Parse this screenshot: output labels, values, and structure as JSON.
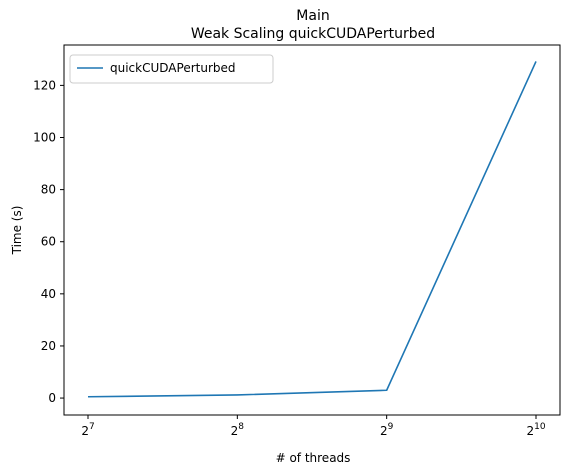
{
  "chart_data": {
    "type": "line",
    "title": "Main",
    "subtitle": "Weak Scaling quickCUDAPerturbed",
    "xlabel": "# of threads",
    "ylabel": "Time (s)",
    "x_scale": "log2",
    "x": [
      128,
      256,
      512,
      1024
    ],
    "x_tick_values": [
      128,
      256,
      512,
      1024
    ],
    "x_tick_labels": [
      {
        "base": "2",
        "exp": "7"
      },
      {
        "base": "2",
        "exp": "8"
      },
      {
        "base": "2",
        "exp": "9"
      },
      {
        "base": "2",
        "exp": "10"
      }
    ],
    "y_ticks": [
      "0",
      "20",
      "40",
      "60",
      "80",
      "100",
      "120"
    ],
    "y_tick_values": [
      0,
      20,
      40,
      60,
      80,
      100,
      120
    ],
    "ylim": [
      -6.5,
      135.5
    ],
    "grid": false,
    "legend_position": "top-left",
    "series": [
      {
        "name": "quickCUDAPerturbed",
        "color": "#1f77b4",
        "values": [
          0.5,
          1.2,
          3.0,
          129.2
        ]
      }
    ]
  }
}
